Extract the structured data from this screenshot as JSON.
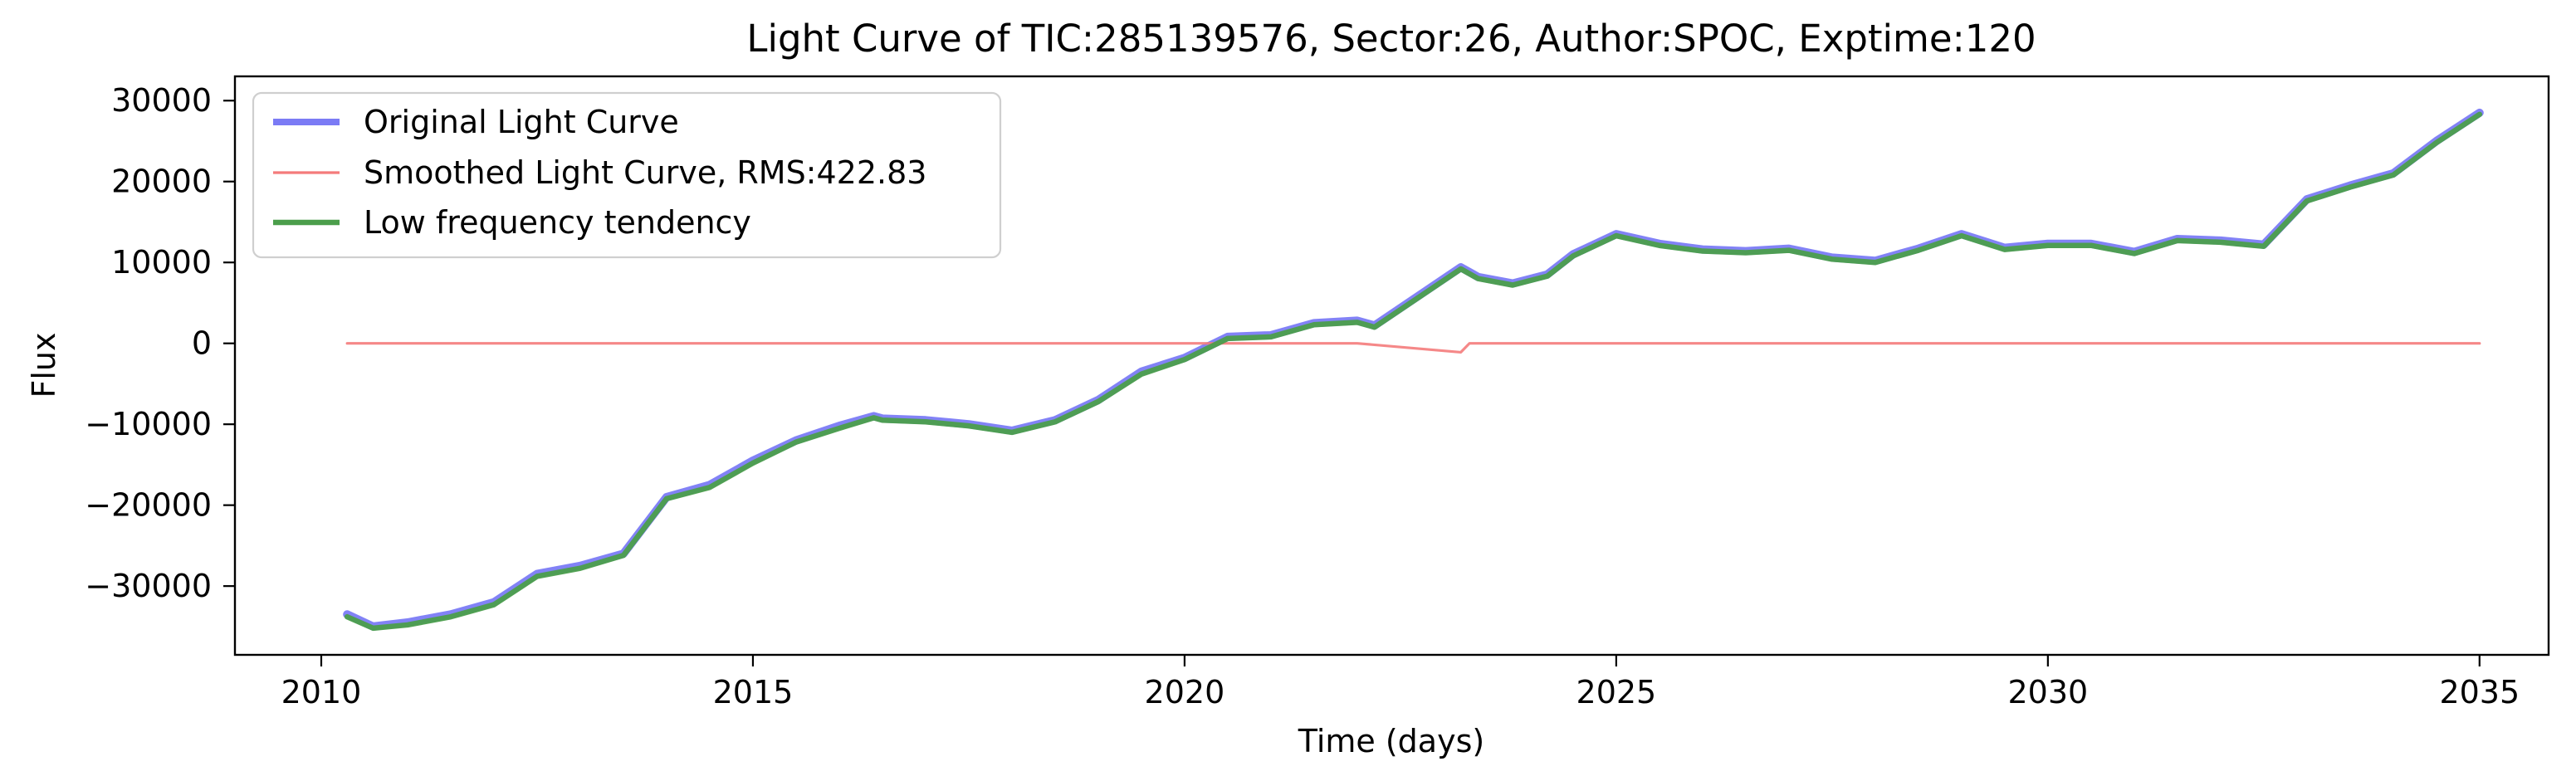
{
  "chart_data": {
    "type": "line",
    "title": "Light Curve of TIC:285139576, Sector:26, Author:SPOC, Exptime:120",
    "xlabel": "Time (days)",
    "ylabel": "Flux",
    "xlim": [
      2009.0,
      2035.8
    ],
    "ylim": [
      -38500,
      33000
    ],
    "x_ticks": [
      2010,
      2015,
      2020,
      2025,
      2030,
      2035
    ],
    "y_ticks": [
      -30000,
      -20000,
      -10000,
      0,
      10000,
      20000,
      30000
    ],
    "x_tick_labels": [
      "2010",
      "2015",
      "2020",
      "2025",
      "2030",
      "2035"
    ],
    "y_tick_labels": [
      "−30000",
      "−20000",
      "−10000",
      "0",
      "10000",
      "20000",
      "30000"
    ],
    "grid": false,
    "legend": {
      "placement": "top-left",
      "entries": [
        {
          "label": "Original Light Curve",
          "color": "#7b7bf5"
        },
        {
          "label": "Smoothed Light Curve, RMS:422.83",
          "color": "#f47b7b"
        },
        {
          "label": "Low frequency tendency",
          "color": "#4b9e4b"
        }
      ]
    },
    "series": [
      {
        "name": "Original Light Curve",
        "color": "#7b7bf5",
        "x": [
          2010.3,
          2010.6,
          2011.0,
          2011.5,
          2012.0,
          2012.5,
          2013.0,
          2013.5,
          2014.0,
          2014.5,
          2015.0,
          2015.5,
          2016.0,
          2016.4,
          2016.5,
          2017.0,
          2017.5,
          2018.0,
          2018.5,
          2019.0,
          2019.5,
          2020.0,
          2020.5,
          2021.0,
          2021.5,
          2022.0,
          2022.2,
          2023.2,
          2023.4,
          2023.8,
          2024.2,
          2024.5,
          2025.0,
          2025.5,
          2026.0,
          2026.5,
          2027.0,
          2027.5,
          2028.0,
          2028.5,
          2029.0,
          2029.5,
          2030.0,
          2030.5,
          2031.0,
          2031.5,
          2032.0,
          2032.5,
          2033.0,
          2033.5,
          2034.0,
          2034.5,
          2035.0
        ],
        "y": [
          -33500,
          -35000,
          -34500,
          -33500,
          -32000,
          -28500,
          -27500,
          -26000,
          -19000,
          -17500,
          -14500,
          -12000,
          -10200,
          -9000,
          -9300,
          -9500,
          -10000,
          -10800,
          -9500,
          -7000,
          -3500,
          -1800,
          800,
          1000,
          2500,
          2800,
          2200,
          9400,
          8200,
          7400,
          8500,
          11000,
          13500,
          12300,
          11600,
          11400,
          11700,
          10600,
          10200,
          11700,
          13500,
          11800,
          12300,
          12300,
          11300,
          12900,
          12700,
          12200,
          17800,
          19500,
          21000,
          25000,
          28500
        ]
      },
      {
        "name": "Smoothed Light Curve, RMS:422.83",
        "color": "#f47b7b",
        "x": [
          2010.3,
          2016.3,
          2016.5,
          2019.5,
          2020.0,
          2021.0,
          2022.0,
          2023.2,
          2023.3,
          2035.0
        ],
        "y": [
          0,
          0,
          0,
          0,
          0,
          0,
          0,
          -1100,
          0,
          0
        ]
      },
      {
        "name": "Low frequency tendency",
        "color": "#4b9e4b",
        "x": [
          2010.3,
          2010.6,
          2011.0,
          2011.5,
          2012.0,
          2012.5,
          2013.0,
          2013.5,
          2014.0,
          2014.5,
          2015.0,
          2015.5,
          2016.0,
          2016.4,
          2016.5,
          2017.0,
          2017.5,
          2018.0,
          2018.5,
          2019.0,
          2019.5,
          2020.0,
          2020.5,
          2021.0,
          2021.5,
          2022.0,
          2022.2,
          2023.2,
          2023.4,
          2023.8,
          2024.2,
          2024.5,
          2025.0,
          2025.5,
          2026.0,
          2026.5,
          2027.0,
          2027.5,
          2028.0,
          2028.5,
          2029.0,
          2029.5,
          2030.0,
          2030.5,
          2031.0,
          2031.5,
          2032.0,
          2032.5,
          2033.0,
          2033.5,
          2034.0,
          2034.5,
          2035.0
        ],
        "y": [
          -33800,
          -35200,
          -34800,
          -33800,
          -32300,
          -28800,
          -27800,
          -26200,
          -19200,
          -17800,
          -14800,
          -12200,
          -10500,
          -9200,
          -9500,
          -9700,
          -10200,
          -11000,
          -9700,
          -7200,
          -3800,
          -2000,
          600,
          800,
          2300,
          2600,
          2000,
          9200,
          8000,
          7200,
          8300,
          10800,
          13300,
          12100,
          11400,
          11200,
          11500,
          10400,
          10000,
          11500,
          13300,
          11600,
          12100,
          12100,
          11100,
          12700,
          12500,
          12000,
          17600,
          19300,
          20800,
          24800,
          28300
        ]
      }
    ]
  }
}
